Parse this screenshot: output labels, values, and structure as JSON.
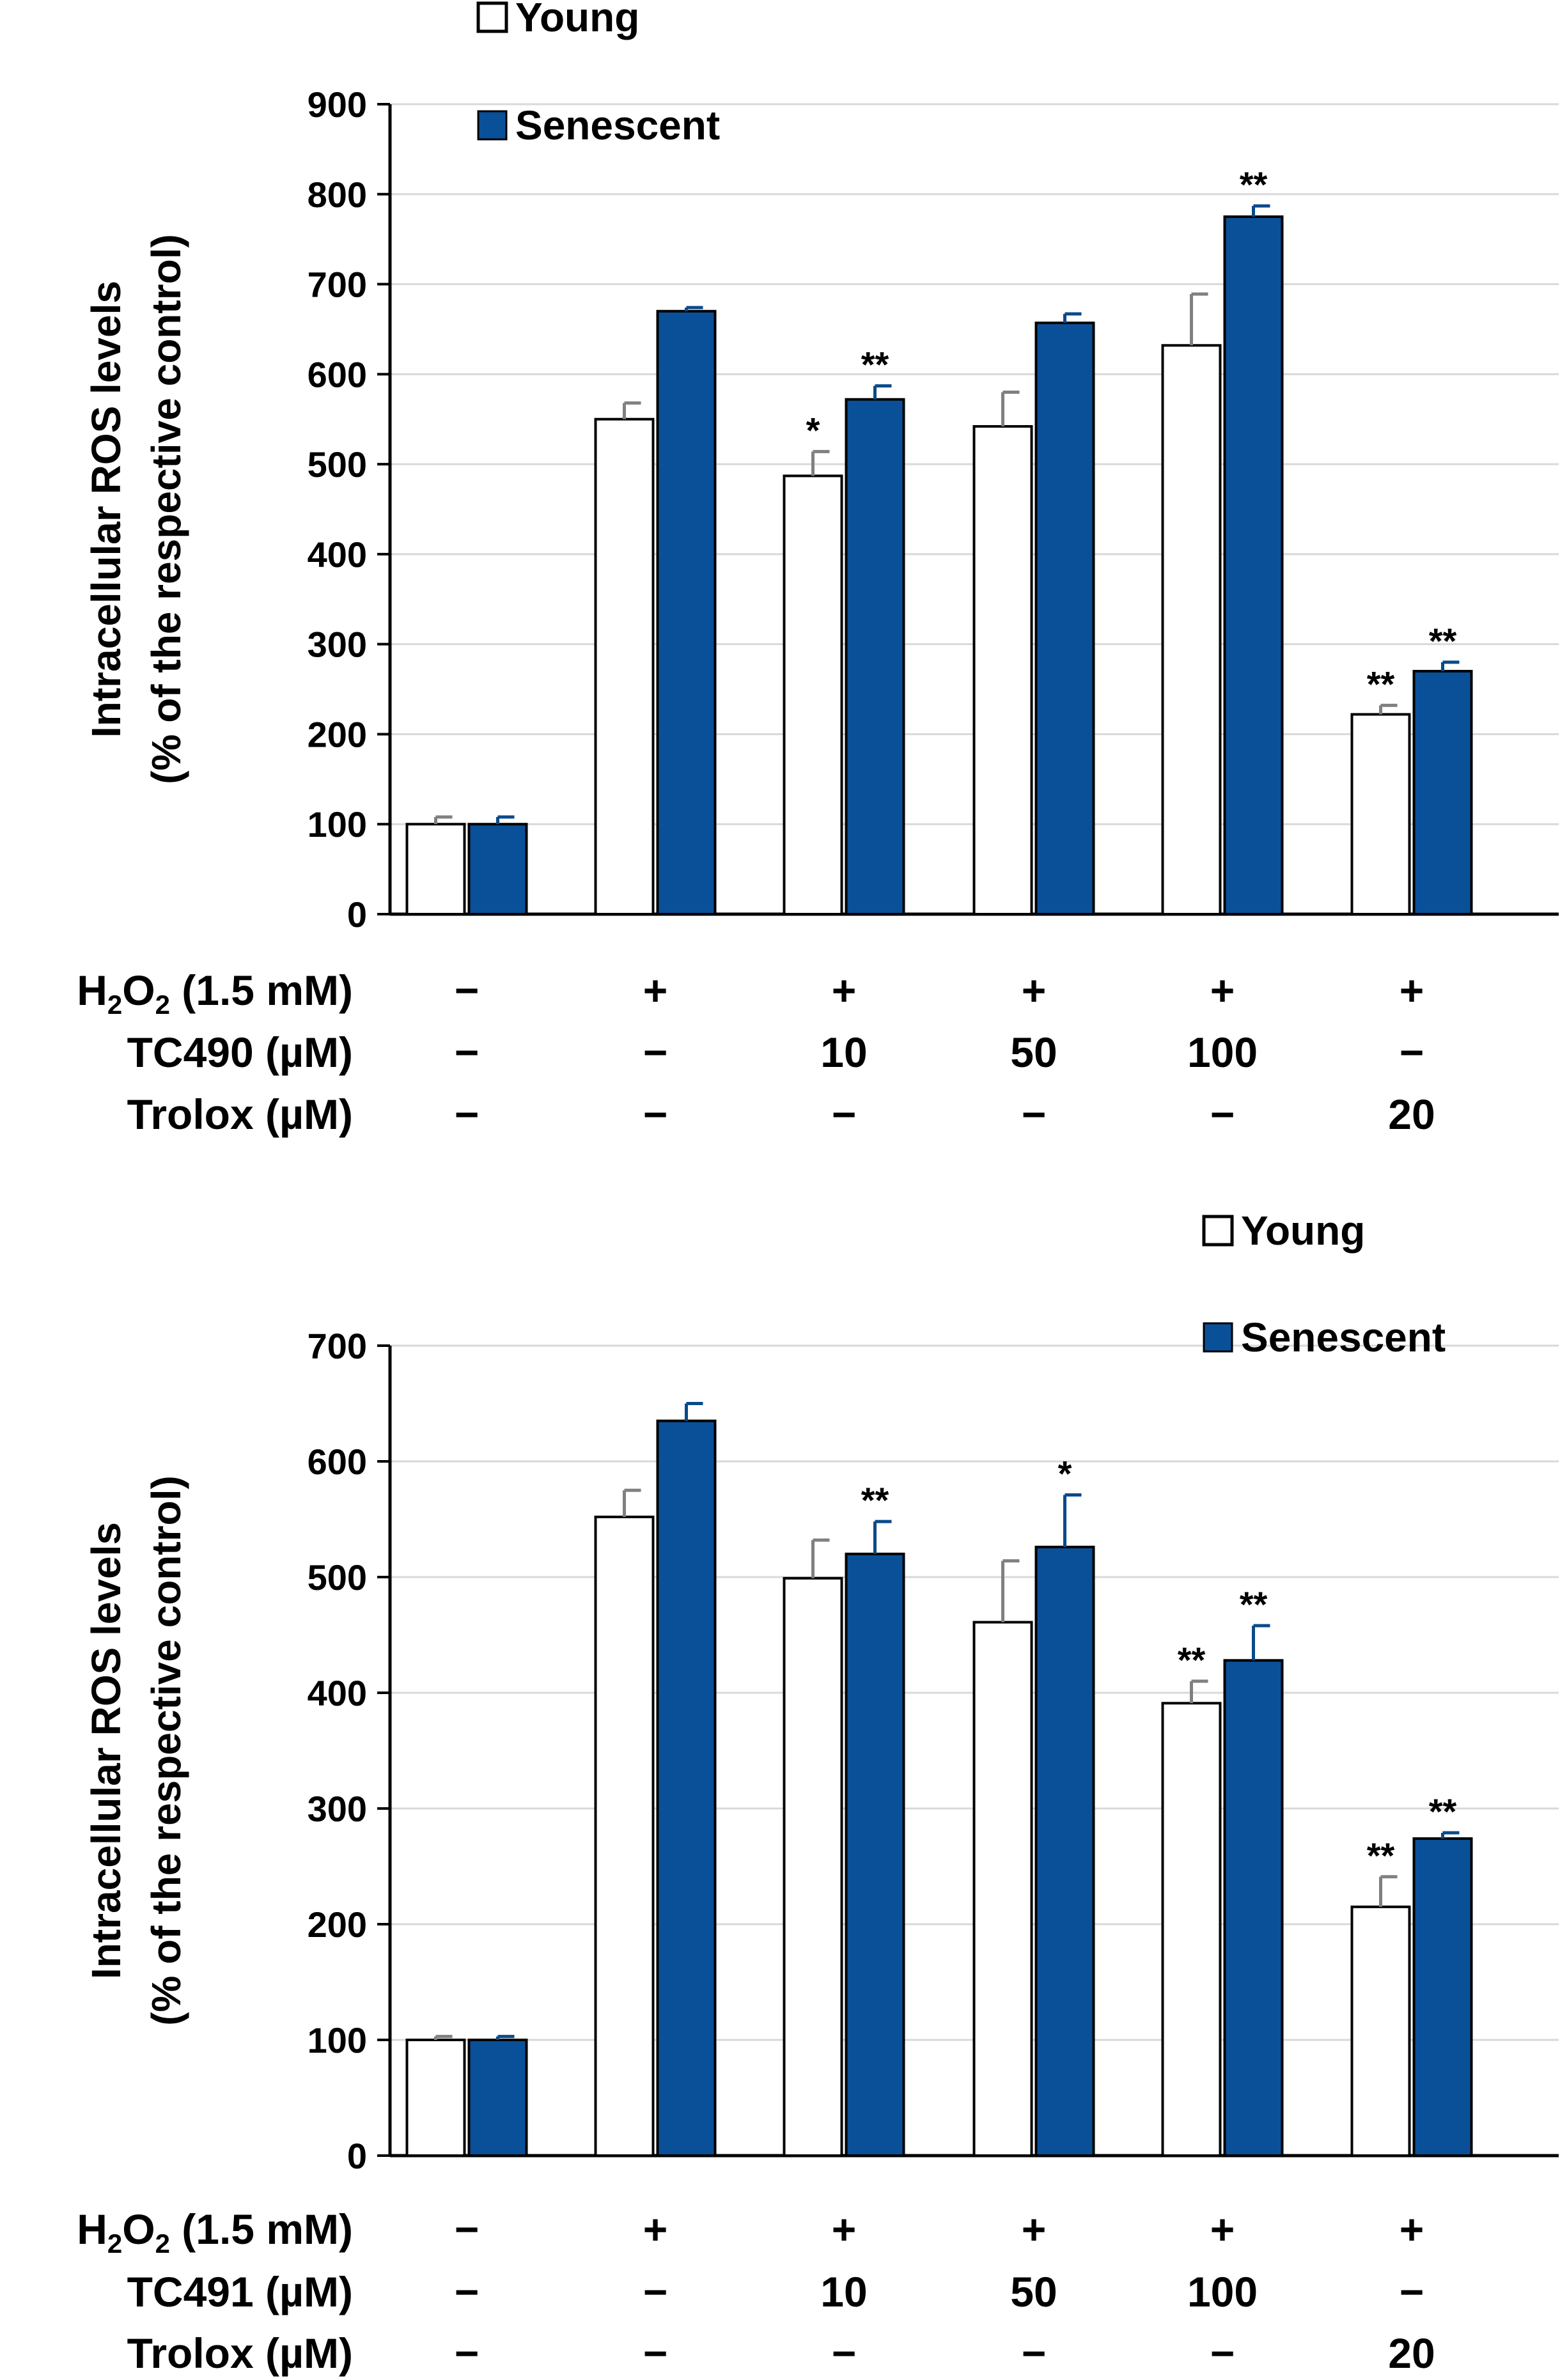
{
  "colors": {
    "young_fill": "#ffffff",
    "senescent_fill": "#0a5098",
    "young_err": "#808080",
    "senescent_err": "#0a4a8a",
    "grid": "#d9d9d9"
  },
  "chart_data": [
    {
      "type": "bar",
      "ylabel": [
        "Intracellular ROS levels",
        "(% of the respective control)"
      ],
      "ylim": [
        0,
        900
      ],
      "yticks": [
        0,
        100,
        200,
        300,
        400,
        500,
        600,
        700,
        800,
        900
      ],
      "grid": true,
      "legend_position": "top-left",
      "series": [
        {
          "name": "Young",
          "values": [
            100,
            550,
            487,
            542,
            632,
            222
          ],
          "errors": [
            8,
            18,
            27,
            38,
            57,
            10
          ],
          "stars": [
            "",
            "",
            "*",
            "",
            "",
            "**"
          ]
        },
        {
          "name": "Senescent",
          "values": [
            100,
            670,
            572,
            657,
            775,
            270
          ],
          "errors": [
            8,
            4,
            15,
            10,
            12,
            10
          ],
          "stars": [
            "",
            "",
            "**",
            "",
            "**",
            "**"
          ]
        }
      ],
      "conditions": [
        {
          "label": "H",
          "sub1": "2",
          "mid": "O",
          "sub2": "2",
          "rest": " (1.5 mM)",
          "values": [
            "−",
            "+",
            "+",
            "+",
            "+",
            "+"
          ]
        },
        {
          "label": "TC490 (µM)",
          "values": [
            "−",
            "−",
            "10",
            "50",
            "100",
            "−"
          ]
        },
        {
          "label": "Trolox (µM)",
          "values": [
            "−",
            "−",
            "−",
            "−",
            "−",
            "20"
          ]
        }
      ]
    },
    {
      "type": "bar",
      "ylabel": [
        "Intracellular ROS levels",
        "(% of the respective control)"
      ],
      "ylim": [
        0,
        700
      ],
      "yticks": [
        0,
        100,
        200,
        300,
        400,
        500,
        600,
        700
      ],
      "grid": true,
      "legend_position": "top-right",
      "series": [
        {
          "name": "Young",
          "values": [
            100,
            552,
            499,
            461,
            391,
            215
          ],
          "errors": [
            3,
            23,
            33,
            53,
            19,
            26
          ],
          "stars": [
            "",
            "",
            "",
            "",
            "**",
            "**"
          ]
        },
        {
          "name": "Senescent",
          "values": [
            100,
            635,
            520,
            526,
            428,
            274
          ],
          "errors": [
            3,
            15,
            28,
            45,
            30,
            5
          ],
          "stars": [
            "",
            "",
            "**",
            "*",
            "**",
            "**"
          ]
        }
      ],
      "conditions": [
        {
          "label": "H",
          "sub1": "2",
          "mid": "O",
          "sub2": "2",
          "rest": " (1.5 mM)",
          "values": [
            "−",
            "+",
            "+",
            "+",
            "+",
            "+"
          ]
        },
        {
          "label": "TC491 (µM)",
          "values": [
            "−",
            "−",
            "10",
            "50",
            "100",
            "−"
          ]
        },
        {
          "label": "Trolox (µM)",
          "values": [
            "−",
            "−",
            "−",
            "−",
            "−",
            "20"
          ]
        }
      ]
    }
  ]
}
